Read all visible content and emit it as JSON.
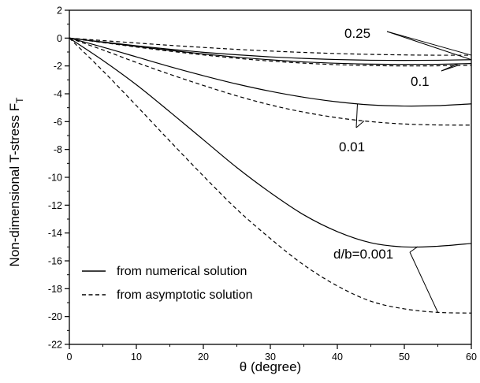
{
  "chart_data": {
    "type": "line",
    "xlabel": "θ (degree)",
    "ylabel": "Non-dimensional T-stress F",
    "ylabel_subscript": "T",
    "xlim": [
      0,
      60
    ],
    "ylim": [
      -22,
      2
    ],
    "xticks": [
      0,
      10,
      20,
      30,
      40,
      50,
      60
    ],
    "yticks": [
      2,
      0,
      -2,
      -4,
      -6,
      -8,
      -10,
      -12,
      -14,
      -16,
      -18,
      -20,
      -22
    ],
    "grid": false,
    "legend": {
      "placement": "bottom-left",
      "entries": [
        {
          "style": "solid",
          "label": "from numerical solution"
        },
        {
          "style": "dashed",
          "label": "from asymptotic solution"
        }
      ]
    },
    "x": [
      0,
      5,
      10,
      15,
      20,
      25,
      30,
      35,
      40,
      45,
      50,
      55,
      60
    ],
    "series": [
      {
        "group": "0.25",
        "style": "solid",
        "values": [
          0,
          -0.28,
          -0.55,
          -0.8,
          -1.02,
          -1.2,
          -1.35,
          -1.46,
          -1.54,
          -1.59,
          -1.6,
          -1.59,
          -1.55
        ]
      },
      {
        "group": "0.25",
        "style": "dashed",
        "values": [
          0,
          -0.18,
          -0.35,
          -0.52,
          -0.67,
          -0.81,
          -0.93,
          -1.03,
          -1.11,
          -1.17,
          -1.21,
          -1.23,
          -1.23
        ]
      },
      {
        "group": "0.1",
        "style": "solid",
        "values": [
          0,
          -0.3,
          -0.6,
          -0.88,
          -1.14,
          -1.37,
          -1.56,
          -1.71,
          -1.81,
          -1.87,
          -1.89,
          -1.88,
          -1.83
        ]
      },
      {
        "group": "0.1",
        "style": "dashed",
        "values": [
          0,
          -0.32,
          -0.64,
          -0.94,
          -1.21,
          -1.45,
          -1.65,
          -1.8,
          -1.91,
          -1.97,
          -2.0,
          -1.99,
          -1.95
        ]
      },
      {
        "group": "0.01",
        "style": "solid",
        "values": [
          0,
          -0.65,
          -1.35,
          -2.05,
          -2.7,
          -3.3,
          -3.82,
          -4.25,
          -4.58,
          -4.8,
          -4.88,
          -4.85,
          -4.72
        ]
      },
      {
        "group": "0.01",
        "style": "dashed",
        "values": [
          0,
          -0.85,
          -1.75,
          -2.6,
          -3.4,
          -4.15,
          -4.8,
          -5.32,
          -5.72,
          -6.0,
          -6.17,
          -6.24,
          -6.25
        ]
      },
      {
        "group": "d/b=0.001",
        "style": "solid",
        "values": [
          0,
          -1.6,
          -3.35,
          -5.3,
          -7.3,
          -9.3,
          -11.1,
          -12.7,
          -13.9,
          -14.7,
          -15.0,
          -14.95,
          -14.75
        ]
      },
      {
        "group": "d/b=0.001",
        "style": "dashed",
        "values": [
          0,
          -2.35,
          -4.85,
          -7.4,
          -9.9,
          -12.3,
          -14.4,
          -16.3,
          -17.8,
          -18.9,
          -19.45,
          -19.7,
          -19.75
        ]
      }
    ],
    "annotations": [
      {
        "text": "0.25",
        "points_to_x": 60,
        "targets": [
          "0.25"
        ]
      },
      {
        "text": "0.1",
        "targets": [
          "0.1"
        ]
      },
      {
        "text": "0.01",
        "targets": [
          "0.01"
        ]
      },
      {
        "text": "d/b=0.001",
        "targets": [
          "d/b=0.001"
        ]
      }
    ]
  }
}
